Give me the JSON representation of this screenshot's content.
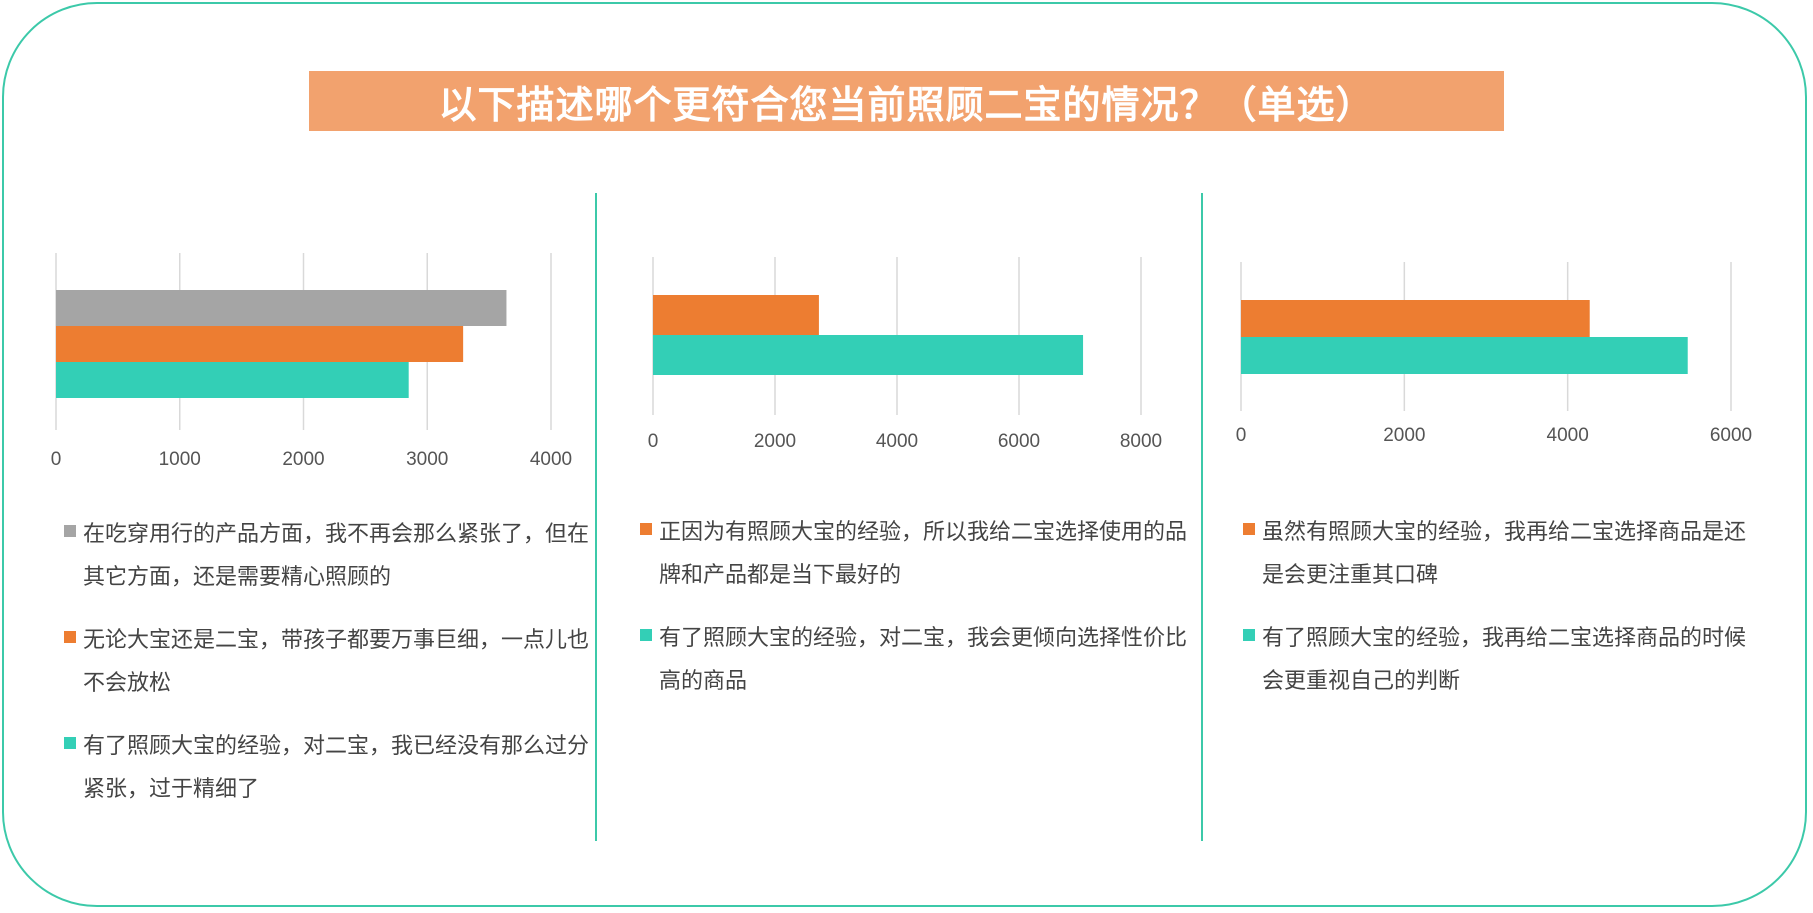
{
  "title": "以下描述哪个更符合您当前照顾二宝的情况？（单选）",
  "colors": {
    "frame": "#3cc9a9",
    "title_bg": "#f2a26e",
    "gray": "#a5a5a5",
    "orange": "#ed7d31",
    "teal": "#33cfb6",
    "grid": "#d9d9d9"
  },
  "chart_data": [
    {
      "type": "bar",
      "orientation": "horizontal",
      "xlim": [
        0,
        4000
      ],
      "ticks": [
        "0",
        "1000",
        "2000",
        "3000",
        "4000"
      ],
      "series": [
        {
          "legend": "在吃穿用行的产品方面，我不再会那么紧张了，但在其它方面，还是需要精心照顾的",
          "color": "#a5a5a5",
          "value": 3640
        },
        {
          "legend": "无论大宝还是二宝，带孩子都要万事巨细，一点儿也不会放松",
          "color": "#ed7d31",
          "value": 3290
        },
        {
          "legend": "有了照顾大宝的经验，对二宝，我已经没有那么过分紧张，过于精细了",
          "color": "#33cfb6",
          "value": 2850
        }
      ]
    },
    {
      "type": "bar",
      "orientation": "horizontal",
      "xlim": [
        0,
        8000
      ],
      "ticks": [
        "0",
        "2000",
        "4000",
        "6000",
        "8000"
      ],
      "series": [
        {
          "legend": "正因为有照顾大宝的经验，所以我给二宝选择使用的品牌和产品都是当下最好的",
          "color": "#ed7d31",
          "value": 2720
        },
        {
          "legend": "有了照顾大宝的经验，对二宝，我会更倾向选择性价比高的商品",
          "color": "#33cfb6",
          "value": 7050
        }
      ]
    },
    {
      "type": "bar",
      "orientation": "horizontal",
      "xlim": [
        0,
        6000
      ],
      "ticks": [
        "0",
        "2000",
        "4000",
        "6000"
      ],
      "series": [
        {
          "legend": "虽然有照顾大宝的经验，我再给二宝选择商品是还是会更注重其口碑",
          "color": "#ed7d31",
          "value": 4270
        },
        {
          "legend": "有了照顾大宝的经验，我再给二宝选择商品的时候会更重视自己的判断",
          "color": "#33cfb6",
          "value": 5470
        }
      ]
    }
  ]
}
